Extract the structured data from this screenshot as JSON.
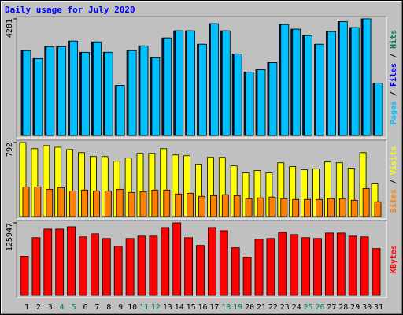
{
  "chart_data": [
    {
      "type": "bar",
      "title": "Daily usage for July 2020",
      "ylim": [
        0,
        4281
      ],
      "yticks": [
        4281
      ],
      "legend_separator": " / ",
      "series": [
        {
          "name": "Hits",
          "color": "#00805c",
          "values": [
            3115,
            2823,
            3259,
            3259,
            3463,
            3056,
            3434,
            3056,
            1833,
            3115,
            3288,
            2852,
            3579,
            3841,
            3841,
            3347,
            4103,
            3841,
            2997,
            2328,
            2415,
            2677,
            4074,
            3899,
            3667,
            3347,
            3812,
            4180,
            3958,
            4281,
            1921
          ]
        },
        {
          "name": "Files",
          "color": "#0000ff",
          "values": [
            3115,
            2823,
            3259,
            3259,
            3463,
            3056,
            3434,
            3056,
            1833,
            3115,
            3288,
            2852,
            3579,
            3841,
            3841,
            3347,
            4103,
            3841,
            2997,
            2328,
            2415,
            2677,
            4074,
            3899,
            3667,
            3347,
            3812,
            4180,
            3958,
            4281,
            1921
          ]
        },
        {
          "name": "Pages",
          "color": "#00c0ff",
          "values": [
            3115,
            2823,
            3259,
            3259,
            3463,
            3056,
            3434,
            3056,
            1833,
            3115,
            3288,
            2852,
            3579,
            3841,
            3841,
            3347,
            4103,
            3841,
            2997,
            2328,
            2415,
            2677,
            4074,
            3899,
            3667,
            3347,
            3812,
            4180,
            3958,
            4281,
            1921
          ]
        }
      ]
    },
    {
      "type": "bar",
      "ylim": [
        0,
        792
      ],
      "yticks": [
        792
      ],
      "legend_separator": " / ",
      "series": [
        {
          "name": "Visits",
          "color": "#ffff00",
          "values": [
            792,
            726,
            759,
            742,
            717,
            684,
            642,
            642,
            592,
            626,
            676,
            676,
            726,
            659,
            651,
            559,
            634,
            634,
            542,
            467,
            492,
            467,
            575,
            534,
            500,
            509,
            584,
            575,
            517,
            684,
            350
          ]
        },
        {
          "name": "Sites",
          "color": "#ff8000",
          "values": [
            317,
            317,
            292,
            309,
            275,
            284,
            275,
            275,
            292,
            259,
            267,
            284,
            284,
            242,
            250,
            217,
            225,
            234,
            225,
            192,
            200,
            209,
            192,
            183,
            183,
            183,
            192,
            192,
            175,
            300,
            158
          ]
        }
      ]
    },
    {
      "type": "bar",
      "ylim": [
        0,
        125947
      ],
      "yticks": [
        125947
      ],
      "series": [
        {
          "name": "KBytes",
          "color": "#ff0000",
          "values": [
            67700,
            100196,
            115090,
            115090,
            119152,
            101550,
            106966,
            98842,
            85302,
            98842,
            102904,
            102904,
            117798,
            125947,
            100196,
            86656,
            117798,
            112382,
            82594,
            66346,
            97488,
            98842,
            109674,
            105612,
            100196,
            98842,
            108320,
            108320,
            102904,
            101550,
            81240
          ]
        }
      ],
      "categories": [
        "1",
        "2",
        "3",
        "4",
        "5",
        "6",
        "7",
        "8",
        "9",
        "10",
        "11",
        "12",
        "13",
        "14",
        "15",
        "16",
        "17",
        "18",
        "19",
        "20",
        "21",
        "22",
        "23",
        "24",
        "25",
        "26",
        "27",
        "28",
        "29",
        "30",
        "31"
      ],
      "category_colors": [
        "#000000",
        "#000000",
        "#000000",
        "#00805c",
        "#00805c",
        "#000000",
        "#000000",
        "#000000",
        "#000000",
        "#000000",
        "#00805c",
        "#00805c",
        "#000000",
        "#000000",
        "#000000",
        "#000000",
        "#000000",
        "#00805c",
        "#00805c",
        "#000000",
        "#000000",
        "#000000",
        "#000000",
        "#000000",
        "#00805c",
        "#00805c",
        "#000000",
        "#000000",
        "#000000",
        "#000000",
        "#000000"
      ]
    }
  ]
}
